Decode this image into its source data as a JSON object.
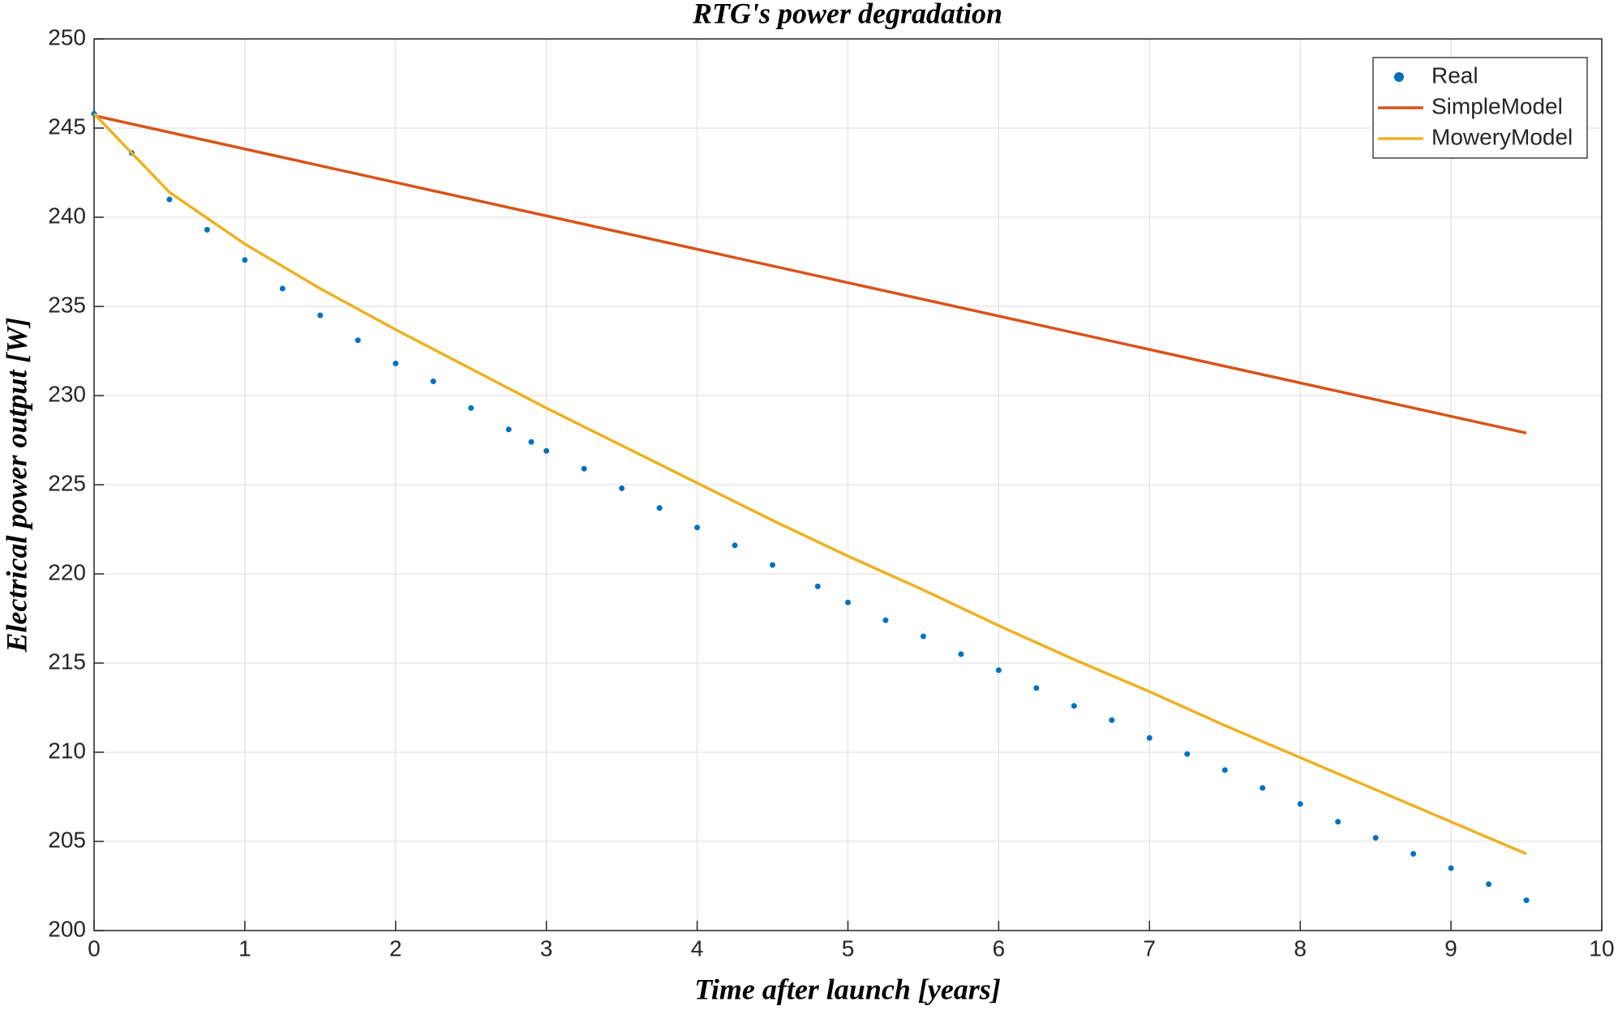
{
  "chart_data": {
    "type": "line",
    "title": "RTG's power degradation",
    "xlabel": "Time after launch [years]",
    "ylabel": "Electrical power output [W]",
    "xlim": [
      0,
      10
    ],
    "xticks": [
      0,
      1,
      2,
      3,
      4,
      5,
      6,
      7,
      8,
      9,
      10
    ],
    "ylim": [
      200,
      250
    ],
    "yticks": [
      200,
      205,
      210,
      215,
      220,
      225,
      230,
      235,
      240,
      245,
      250
    ],
    "grid": true,
    "legend": "upper right",
    "series": [
      {
        "name": "Real",
        "color": "#0072bd",
        "style": "dots",
        "x": [
          0,
          0.25,
          0.5,
          0.75,
          1.0,
          1.25,
          1.5,
          1.75,
          2.0,
          2.25,
          2.5,
          2.75,
          2.9,
          3.0,
          3.25,
          3.5,
          3.75,
          4.0,
          4.25,
          4.5,
          4.8,
          5.0,
          5.25,
          5.5,
          5.75,
          6.0,
          6.25,
          6.5,
          6.75,
          7.0,
          7.25,
          7.5,
          7.75,
          8.0,
          8.25,
          8.5,
          8.75,
          9.0,
          9.25,
          9.5
        ],
        "values": [
          245.8,
          243.6,
          241.0,
          239.3,
          237.6,
          236.0,
          234.5,
          233.1,
          231.8,
          230.8,
          229.3,
          228.1,
          227.4,
          226.9,
          225.9,
          224.8,
          223.7,
          222.6,
          221.6,
          220.5,
          219.3,
          218.4,
          217.4,
          216.5,
          215.5,
          214.6,
          213.6,
          212.6,
          211.8,
          210.8,
          209.9,
          209.0,
          208.0,
          207.1,
          206.1,
          205.2,
          204.3,
          203.5,
          202.6,
          201.7
        ]
      },
      {
        "name": "SimpleModel",
        "color": "#d95319",
        "style": "line",
        "x": [
          0,
          9.5
        ],
        "values": [
          245.7,
          227.9
        ]
      },
      {
        "name": "MoweryModel",
        "color": "#edb120",
        "style": "line",
        "x": [
          0,
          0.5,
          1,
          1.5,
          2,
          2.5,
          3,
          3.5,
          4,
          4.5,
          5,
          5.5,
          6,
          6.5,
          7,
          7.5,
          8,
          8.5,
          9,
          9.5
        ],
        "values": [
          245.8,
          241.4,
          238.5,
          236.0,
          233.7,
          231.5,
          229.3,
          227.2,
          225.1,
          223.0,
          221.0,
          219.1,
          217.1,
          215.2,
          213.4,
          211.5,
          209.7,
          207.9,
          206.1,
          204.3
        ]
      }
    ]
  }
}
